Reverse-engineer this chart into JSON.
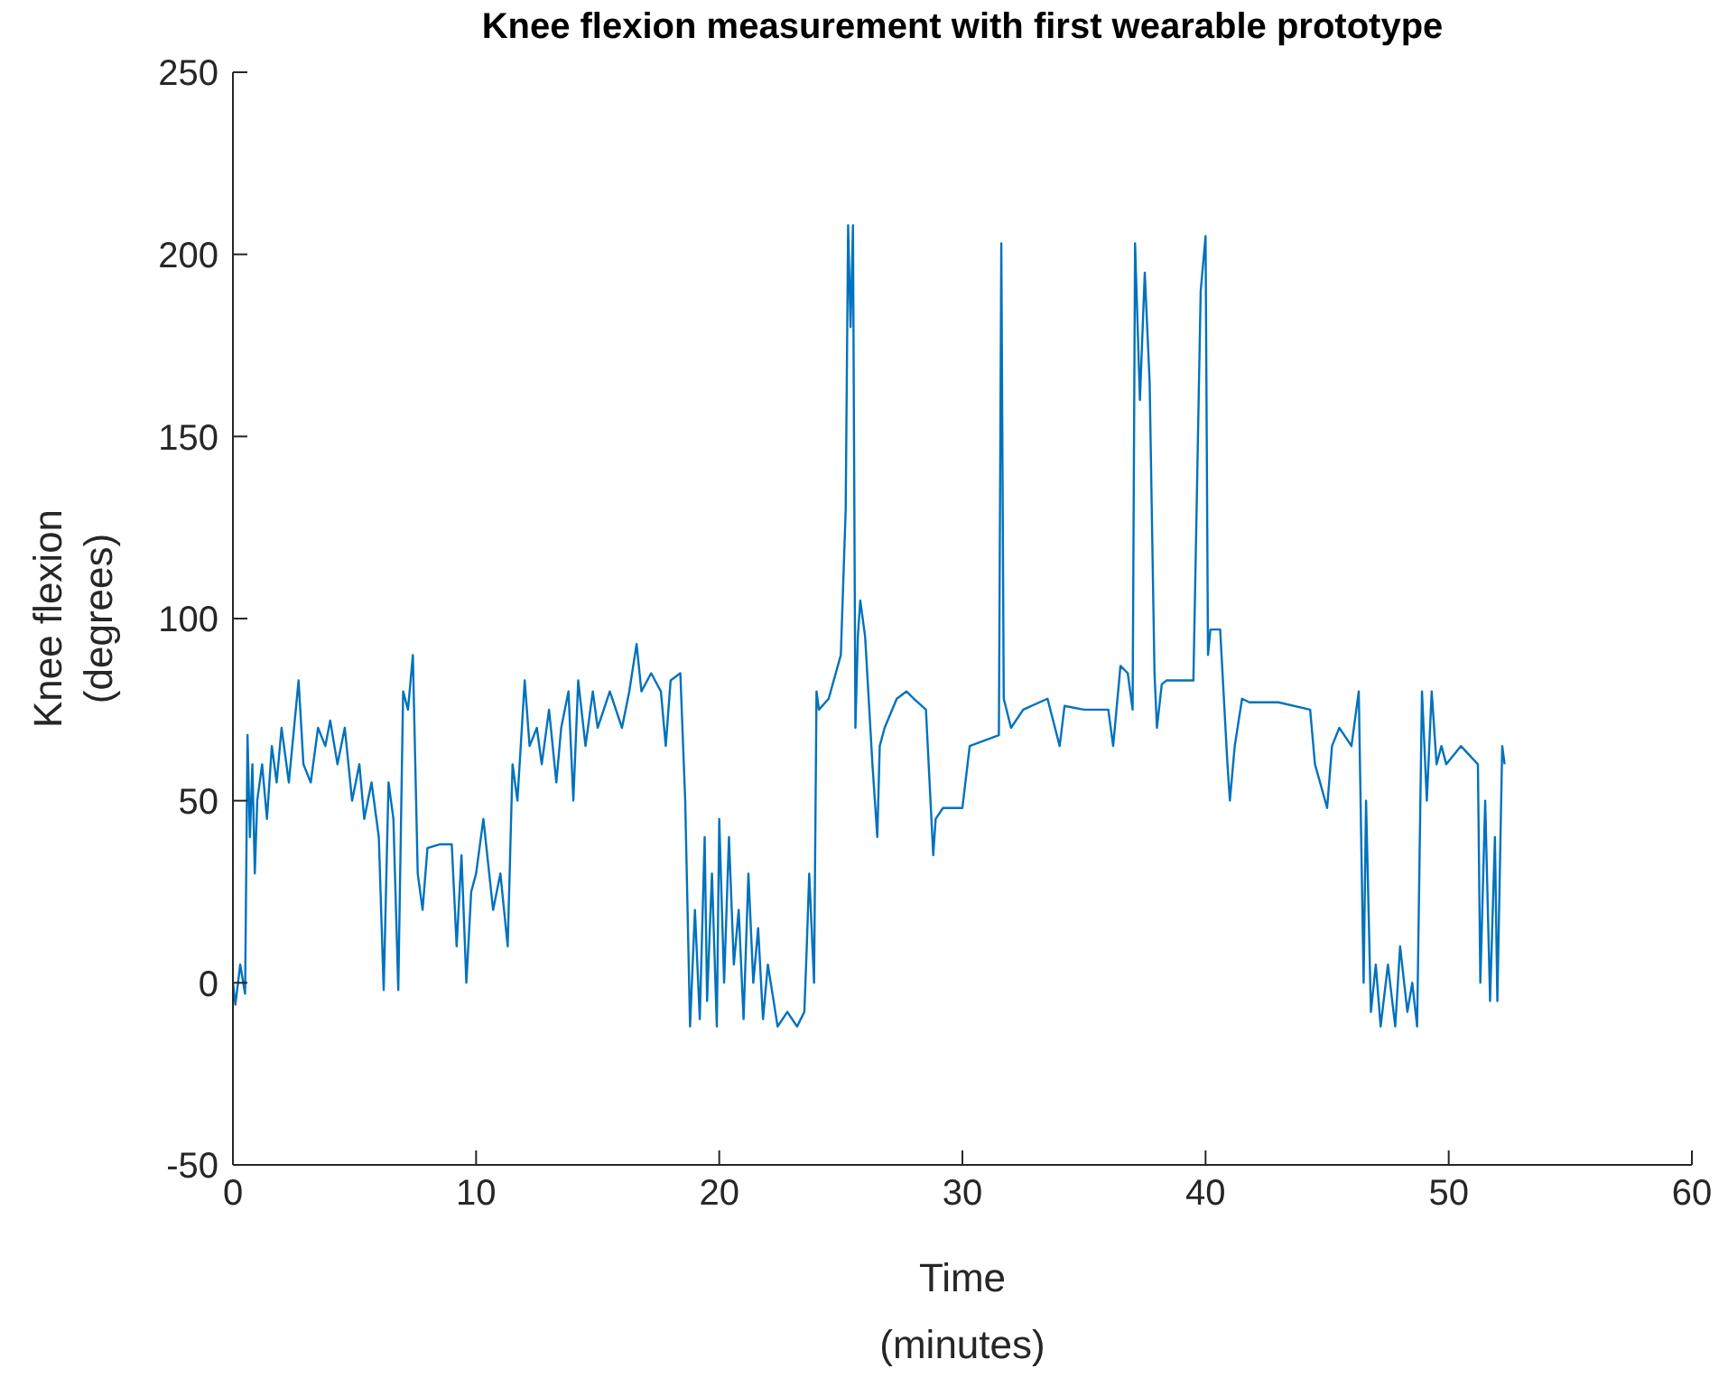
{
  "chart_data": {
    "type": "line",
    "title": "Knee flexion measurement with first wearable prototype",
    "xlabel": "Time\n(minutes)",
    "ylabel": "Knee flexion\n(degrees)",
    "xlim": [
      0,
      60
    ],
    "xticks": [
      0,
      10,
      20,
      30,
      40,
      50,
      60
    ],
    "ylim": [
      -50,
      250
    ],
    "yticks": [
      -50,
      0,
      50,
      100,
      150,
      200,
      250
    ],
    "grid": false,
    "legend": false,
    "marker": "none",
    "series": [
      {
        "color": "#0072bd",
        "x": [
          0,
          0.1,
          0.3,
          0.5,
          0.6,
          0.7,
          0.8,
          0.9,
          1.0,
          1.2,
          1.4,
          1.6,
          1.8,
          2.0,
          2.3,
          2.7,
          2.9,
          3.2,
          3.5,
          3.8,
          4.0,
          4.3,
          4.6,
          4.9,
          5.2,
          5.4,
          5.7,
          6.0,
          6.2,
          6.4,
          6.6,
          6.8,
          7.0,
          7.2,
          7.4,
          7.6,
          7.8,
          8.0,
          8.5,
          9.0,
          9.2,
          9.4,
          9.6,
          9.8,
          10.0,
          10.3,
          10.7,
          11.0,
          11.3,
          11.5,
          11.7,
          12.0,
          12.2,
          12.5,
          12.7,
          13.0,
          13.3,
          13.5,
          13.8,
          14.0,
          14.2,
          14.5,
          14.8,
          15.0,
          15.5,
          16.0,
          16.3,
          16.6,
          16.8,
          17.2,
          17.6,
          17.8,
          18.0,
          18.4,
          18.6,
          18.8,
          19.0,
          19.2,
          19.4,
          19.5,
          19.7,
          19.9,
          20.0,
          20.2,
          20.4,
          20.6,
          20.8,
          21.0,
          21.2,
          21.4,
          21.6,
          21.8,
          22.0,
          22.4,
          22.8,
          23.2,
          23.5,
          23.6,
          23.7,
          23.9,
          24.0,
          24.1,
          24.5,
          25.0,
          25.2,
          25.3,
          25.4,
          25.5,
          25.6,
          25.7,
          25.8,
          26.0,
          26.3,
          26.5,
          26.6,
          26.8,
          27.3,
          27.7,
          28.0,
          28.5,
          28.8,
          28.9,
          29.2,
          30.0,
          30.3,
          31.5,
          31.6,
          31.7,
          32.0,
          32.5,
          33.5,
          34.0,
          34.2,
          35.0,
          36.0,
          36.2,
          36.5,
          36.8,
          37.0,
          37.1,
          37.3,
          37.5,
          37.7,
          37.9,
          38.0,
          38.2,
          38.4,
          39.5,
          39.8,
          40.0,
          40.1,
          40.2,
          40.6,
          40.9,
          41.0,
          41.2,
          41.5,
          41.8,
          43.0,
          44.3,
          44.5,
          45.0,
          45.2,
          45.5,
          46.0,
          46.3,
          46.5,
          46.6,
          46.8,
          47.0,
          47.2,
          47.5,
          47.8,
          48.0,
          48.3,
          48.5,
          48.7,
          48.9,
          49.1,
          49.3,
          49.5,
          49.7,
          49.9,
          50.5,
          51.2,
          51.3,
          51.5,
          51.7,
          51.9,
          52.0,
          52.2,
          52.3
        ],
        "values": [
          0,
          -6,
          5,
          -3,
          68,
          40,
          60,
          30,
          50,
          60,
          45,
          65,
          55,
          70,
          55,
          83,
          60,
          55,
          70,
          65,
          72,
          60,
          70,
          50,
          60,
          45,
          55,
          40,
          -2,
          55,
          45,
          -2,
          80,
          75,
          90,
          30,
          20,
          37,
          38,
          38,
          10,
          35,
          0,
          25,
          30,
          45,
          20,
          30,
          10,
          60,
          50,
          83,
          65,
          70,
          60,
          75,
          55,
          70,
          80,
          50,
          83,
          65,
          80,
          70,
          80,
          70,
          80,
          93,
          80,
          85,
          80,
          65,
          83,
          85,
          50,
          -12,
          20,
          -10,
          40,
          -5,
          30,
          -12,
          45,
          0,
          40,
          5,
          20,
          -10,
          30,
          0,
          15,
          -10,
          5,
          -12,
          -8,
          -12,
          -8,
          10,
          30,
          0,
          80,
          75,
          78,
          90,
          130,
          208,
          180,
          208,
          70,
          95,
          105,
          95,
          60,
          40,
          65,
          70,
          78,
          80,
          78,
          75,
          35,
          45,
          48,
          48,
          65,
          68,
          203,
          78,
          70,
          75,
          78,
          65,
          76,
          75,
          75,
          65,
          87,
          85,
          75,
          203,
          160,
          195,
          165,
          85,
          70,
          82,
          83,
          83,
          190,
          205,
          90,
          97,
          97,
          60,
          50,
          65,
          78,
          77,
          77,
          75,
          60,
          48,
          65,
          70,
          65,
          80,
          0,
          50,
          -8,
          5,
          -12,
          5,
          -12,
          10,
          -8,
          0,
          -12,
          80,
          50,
          80,
          60,
          65,
          60,
          65,
          60,
          0,
          50,
          -5,
          40,
          -5,
          65,
          60
        ]
      }
    ]
  }
}
